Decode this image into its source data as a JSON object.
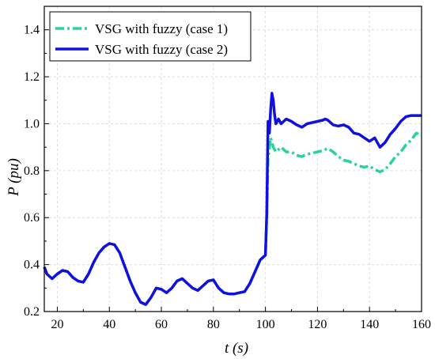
{
  "chart_data": {
    "type": "line",
    "title": "",
    "xlabel": "t (s)",
    "ylabel": "P (pu)",
    "xlim": [
      15,
      160
    ],
    "ylim": [
      0.2,
      1.5
    ],
    "xticks": [
      20,
      40,
      60,
      80,
      100,
      120,
      140,
      160
    ],
    "xtick_labels": [
      "20",
      "40",
      "60",
      "80",
      "100",
      "120",
      "140",
      "160"
    ],
    "yticks": [
      0.2,
      0.4,
      0.6,
      0.8,
      1.0,
      1.2,
      1.4
    ],
    "ytick_labels": [
      "0.2",
      "0.4",
      "0.6",
      "0.8",
      "1.0",
      "1.2",
      "1.4"
    ],
    "grid": true,
    "legend_position": "top-left",
    "series": [
      {
        "name": "VSG with fuzzy (case 1)",
        "color": "#2bd39a",
        "style": "dash-dot",
        "x": [
          15,
          16,
          18,
          20,
          22,
          24,
          26,
          28,
          30,
          32,
          34,
          36,
          38,
          40,
          42,
          44,
          46,
          48,
          50,
          52,
          54,
          56,
          58,
          60,
          62,
          64,
          66,
          68,
          70,
          72,
          74,
          76,
          78,
          80,
          82,
          84,
          86,
          88,
          90,
          92,
          94,
          96,
          98,
          100,
          100.5,
          101,
          102,
          103,
          104,
          106,
          108,
          110,
          112,
          114,
          116,
          118,
          120,
          122,
          124,
          126,
          128,
          130,
          132,
          134,
          136,
          138,
          140,
          142,
          144,
          146,
          148,
          150,
          152,
          154,
          156,
          158,
          160
        ],
        "y": [
          0.39,
          0.36,
          0.34,
          0.36,
          0.375,
          0.37,
          0.345,
          0.33,
          0.325,
          0.36,
          0.41,
          0.45,
          0.475,
          0.49,
          0.485,
          0.45,
          0.39,
          0.33,
          0.28,
          0.24,
          0.23,
          0.26,
          0.3,
          0.295,
          0.28,
          0.3,
          0.33,
          0.34,
          0.32,
          0.3,
          0.29,
          0.31,
          0.33,
          0.335,
          0.3,
          0.28,
          0.275,
          0.275,
          0.28,
          0.285,
          0.32,
          0.37,
          0.42,
          0.44,
          0.6,
          0.85,
          0.94,
          0.9,
          0.88,
          0.9,
          0.88,
          0.88,
          0.865,
          0.86,
          0.87,
          0.875,
          0.88,
          0.885,
          0.895,
          0.88,
          0.86,
          0.845,
          0.84,
          0.83,
          0.82,
          0.815,
          0.82,
          0.805,
          0.795,
          0.805,
          0.83,
          0.86,
          0.88,
          0.91,
          0.93,
          0.96,
          0.95
        ]
      },
      {
        "name": "VSG with fuzzy (case 2)",
        "color": "#1010e0",
        "style": "solid",
        "x": [
          15,
          16,
          18,
          20,
          22,
          24,
          26,
          28,
          30,
          32,
          34,
          36,
          38,
          40,
          42,
          44,
          46,
          48,
          50,
          52,
          54,
          56,
          58,
          60,
          62,
          64,
          66,
          68,
          70,
          72,
          74,
          76,
          78,
          80,
          82,
          84,
          86,
          88,
          90,
          92,
          94,
          96,
          98,
          100,
          100.5,
          101,
          101.5,
          102,
          102.5,
          103,
          103.5,
          104,
          105,
          106,
          108,
          110,
          112,
          114,
          116,
          118,
          120,
          122,
          123,
          124,
          126,
          128,
          130,
          132,
          134,
          136,
          138,
          140,
          142,
          144,
          146,
          148,
          150,
          152,
          154,
          156,
          158,
          160
        ],
        "y": [
          0.39,
          0.36,
          0.34,
          0.36,
          0.375,
          0.37,
          0.345,
          0.33,
          0.325,
          0.36,
          0.41,
          0.45,
          0.475,
          0.49,
          0.485,
          0.45,
          0.39,
          0.33,
          0.28,
          0.24,
          0.23,
          0.26,
          0.3,
          0.295,
          0.28,
          0.3,
          0.33,
          0.34,
          0.32,
          0.3,
          0.29,
          0.31,
          0.33,
          0.335,
          0.3,
          0.28,
          0.275,
          0.275,
          0.28,
          0.285,
          0.32,
          0.37,
          0.42,
          0.44,
          0.62,
          1.01,
          0.96,
          1.06,
          1.13,
          1.1,
          1.04,
          1.0,
          1.02,
          1.0,
          1.02,
          1.01,
          0.995,
          0.985,
          1.0,
          1.005,
          1.01,
          1.015,
          1.02,
          1.015,
          0.995,
          0.99,
          0.995,
          0.985,
          0.96,
          0.955,
          0.94,
          0.925,
          0.94,
          0.9,
          0.92,
          0.955,
          0.98,
          1.01,
          1.03,
          1.035,
          1.035,
          1.035
        ]
      }
    ]
  }
}
